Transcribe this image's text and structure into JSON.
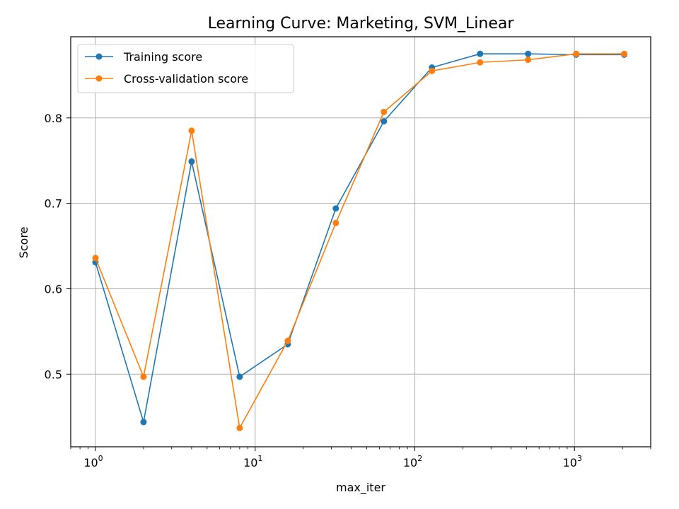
{
  "chart_data": {
    "type": "line",
    "title": "Learning Curve: Marketing, SVM_Linear",
    "xlabel": "max_iter",
    "ylabel": "Score",
    "xscale": "log",
    "xlim": [
      0.7,
      3000
    ],
    "ylim": [
      0.415,
      0.895
    ],
    "grid": true,
    "legend_position": "top-left",
    "x": [
      1,
      2,
      4,
      8,
      16,
      32,
      64,
      128,
      256,
      512,
      1024,
      2048
    ],
    "x_ticks": [
      {
        "value": 1,
        "base": "10",
        "exp": "0"
      },
      {
        "value": 10,
        "base": "10",
        "exp": "1"
      },
      {
        "value": 100,
        "base": "10",
        "exp": "2"
      },
      {
        "value": 1000,
        "base": "10",
        "exp": "3"
      }
    ],
    "y_ticks": [
      {
        "value": 0.5,
        "label": "0.5"
      },
      {
        "value": 0.6,
        "label": "0.6"
      },
      {
        "value": 0.7,
        "label": "0.7"
      },
      {
        "value": 0.8,
        "label": "0.8"
      }
    ],
    "series": [
      {
        "name": "Training score",
        "color": "#1f77b4",
        "values": [
          0.631,
          0.444,
          0.749,
          0.497,
          0.535,
          0.694,
          0.796,
          0.859,
          0.875,
          0.875,
          0.874,
          0.874
        ]
      },
      {
        "name": "Cross-validation score",
        "color": "#ff7f0e",
        "values": [
          0.636,
          0.497,
          0.785,
          0.437,
          0.539,
          0.677,
          0.807,
          0.855,
          0.865,
          0.868,
          0.875,
          0.875
        ]
      }
    ]
  }
}
